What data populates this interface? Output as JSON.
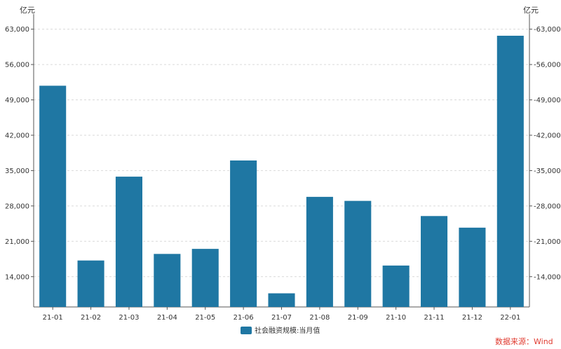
{
  "chart_data": {
    "type": "bar",
    "categories": [
      "21-01",
      "21-02",
      "21-03",
      "21-04",
      "21-05",
      "21-06",
      "21-07",
      "21-08",
      "21-09",
      "21-10",
      "21-11",
      "21-12",
      "22-01"
    ],
    "series": [
      {
        "name": "社会融资规模:当月值",
        "values": [
          51800,
          17200,
          33800,
          18500,
          19500,
          37000,
          10700,
          29800,
          29000,
          16200,
          26000,
          23700,
          61700
        ]
      }
    ],
    "yunit_left": "亿元",
    "yunit_right": "亿元",
    "yticks": [
      14000,
      21000,
      28000,
      35000,
      42000,
      49000,
      56000,
      63000
    ],
    "ytick_labels": [
      "14,000",
      "21,000",
      "28,000",
      "35,000",
      "42,000",
      "49,000",
      "56,000",
      "63,000"
    ],
    "ylim": [
      8000,
      66000
    ],
    "grid": "horizontal-dashed",
    "legend_position": "bottom-center",
    "bar_color": "#1f77a3"
  },
  "source_note": "数据来源：Wind",
  "source_color": "#e03c31"
}
